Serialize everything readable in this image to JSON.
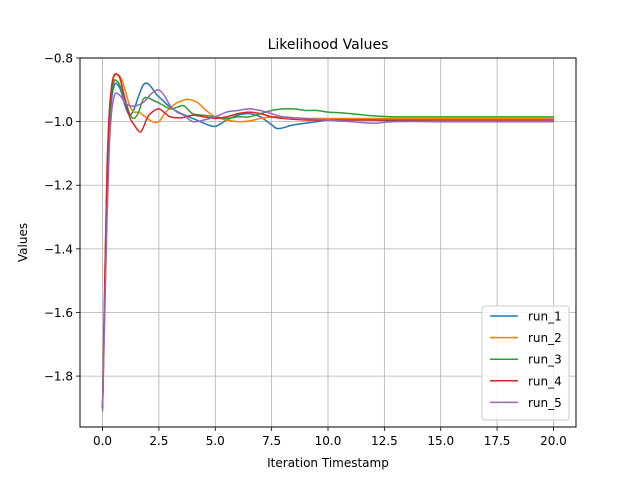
{
  "chart_data": {
    "type": "line",
    "title": "Likelihood Values",
    "xlabel": "Iteration Timestamp",
    "ylabel": "Values",
    "xlim": [
      -1.0,
      21.0
    ],
    "ylim": [
      -1.96,
      -0.8
    ],
    "xticks": [
      0.0,
      2.5,
      5.0,
      7.5,
      10.0,
      12.5,
      15.0,
      17.5,
      20.0
    ],
    "xtick_labels": [
      "0.0",
      "2.5",
      "5.0",
      "7.5",
      "10.0",
      "12.5",
      "15.0",
      "17.5",
      "20.0"
    ],
    "yticks": [
      -1.8,
      -1.6,
      -1.4,
      -1.2,
      -1.0,
      -0.8
    ],
    "ytick_labels": [
      "−1.8",
      "−1.6",
      "−1.4",
      "−1.2",
      "−1.0",
      "−0.8"
    ],
    "grid": true,
    "legend_position": "lower-right",
    "series": [
      {
        "name": "run_1",
        "color": "#1f77b4",
        "x": [
          0,
          0.1,
          0.2,
          0.3,
          0.4,
          0.5,
          0.6,
          0.8,
          1.0,
          1.2,
          1.4,
          1.6,
          1.8,
          2.0,
          2.2,
          2.4,
          2.7,
          3.0,
          3.5,
          4.0,
          4.5,
          5.0,
          5.5,
          6.0,
          6.5,
          7.0,
          7.5,
          7.8,
          8.5,
          9.5,
          10.0,
          11.0,
          12.0,
          13.0,
          15.0,
          17.5,
          20.0
        ],
        "y": [
          -1.9,
          -1.55,
          -1.22,
          -1.02,
          -0.93,
          -0.89,
          -0.88,
          -0.9,
          -0.95,
          -0.98,
          -0.96,
          -0.92,
          -0.885,
          -0.88,
          -0.895,
          -0.915,
          -0.935,
          -0.955,
          -0.975,
          -0.99,
          -1.005,
          -1.015,
          -0.995,
          -0.98,
          -0.975,
          -0.985,
          -1.01,
          -1.022,
          -1.01,
          -1.0,
          -0.995,
          -0.995,
          -0.995,
          -0.998,
          -1.0,
          -1.0,
          -1.0
        ]
      },
      {
        "name": "run_2",
        "color": "#ff7f0e",
        "x": [
          0,
          0.1,
          0.2,
          0.3,
          0.4,
          0.5,
          0.6,
          0.8,
          1.0,
          1.2,
          1.4,
          1.6,
          1.8,
          2.0,
          2.2,
          2.5,
          2.8,
          3.2,
          3.5,
          3.8,
          4.2,
          4.6,
          5.0,
          5.5,
          6.0,
          6.5,
          7.0,
          7.5,
          8.0,
          9.0,
          10.0,
          11.0,
          12.0,
          13.0,
          15.0,
          17.5,
          20.0
        ],
        "y": [
          -1.9,
          -1.5,
          -1.15,
          -0.98,
          -0.9,
          -0.86,
          -0.852,
          -0.86,
          -0.9,
          -0.95,
          -0.97,
          -0.97,
          -0.98,
          -0.99,
          -1.0,
          -1.0,
          -0.97,
          -0.945,
          -0.935,
          -0.93,
          -0.94,
          -0.965,
          -0.985,
          -0.995,
          -1.0,
          -0.998,
          -0.99,
          -0.985,
          -0.985,
          -0.99,
          -0.99,
          -0.99,
          -0.99,
          -0.99,
          -0.99,
          -0.99,
          -0.99
        ]
      },
      {
        "name": "run_3",
        "color": "#2ca02c",
        "x": [
          0,
          0.1,
          0.2,
          0.3,
          0.4,
          0.5,
          0.6,
          0.8,
          1.0,
          1.2,
          1.4,
          1.6,
          1.8,
          2.0,
          2.3,
          2.6,
          3.0,
          3.3,
          3.6,
          4.0,
          4.5,
          5.0,
          5.5,
          6.0,
          6.5,
          7.0,
          7.5,
          8.0,
          8.5,
          9.0,
          9.5,
          10.0,
          10.5,
          11.0,
          12.0,
          13.0,
          15.0,
          17.5,
          20.0
        ],
        "y": [
          -1.9,
          -1.55,
          -1.2,
          -1.0,
          -0.91,
          -0.875,
          -0.87,
          -0.89,
          -0.93,
          -0.975,
          -0.99,
          -0.97,
          -0.93,
          -0.925,
          -0.935,
          -0.945,
          -0.96,
          -0.955,
          -0.95,
          -0.975,
          -0.98,
          -0.985,
          -0.99,
          -0.985,
          -0.985,
          -0.975,
          -0.965,
          -0.96,
          -0.96,
          -0.965,
          -0.965,
          -0.97,
          -0.972,
          -0.975,
          -0.982,
          -0.985,
          -0.985,
          -0.985,
          -0.985
        ]
      },
      {
        "name": "run_4",
        "color": "#d62728",
        "x": [
          0,
          0.1,
          0.2,
          0.3,
          0.4,
          0.5,
          0.6,
          0.7,
          0.8,
          1.0,
          1.2,
          1.4,
          1.6,
          1.7,
          1.8,
          2.0,
          2.2,
          2.5,
          2.8,
          3.0,
          3.5,
          4.0,
          4.5,
          5.0,
          5.5,
          6.0,
          6.5,
          7.0,
          7.5,
          8.0,
          9.0,
          10.0,
          11.0,
          12.0,
          13.0,
          15.0,
          17.5,
          20.0
        ],
        "y": [
          -1.9,
          -1.5,
          -1.15,
          -0.97,
          -0.89,
          -0.855,
          -0.85,
          -0.855,
          -0.87,
          -0.93,
          -0.985,
          -1.01,
          -1.03,
          -1.032,
          -1.02,
          -0.985,
          -0.97,
          -0.96,
          -0.975,
          -0.985,
          -0.988,
          -0.98,
          -0.985,
          -0.99,
          -0.985,
          -0.975,
          -0.97,
          -0.975,
          -0.985,
          -0.99,
          -0.995,
          -0.995,
          -0.995,
          -0.995,
          -0.995,
          -0.995,
          -0.995,
          -0.995
        ]
      },
      {
        "name": "run_5",
        "color": "#9467bd",
        "x": [
          0,
          0.1,
          0.2,
          0.3,
          0.4,
          0.5,
          0.6,
          0.8,
          1.0,
          1.2,
          1.5,
          1.8,
          2.0,
          2.2,
          2.5,
          2.8,
          3.0,
          3.3,
          3.6,
          4.0,
          4.5,
          5.0,
          5.5,
          6.0,
          6.5,
          7.0,
          7.5,
          8.0,
          9.0,
          10.0,
          11.0,
          12.0,
          13.0,
          15.0,
          17.5,
          20.0
        ],
        "y": [
          -1.91,
          -1.6,
          -1.3,
          -1.08,
          -0.97,
          -0.925,
          -0.91,
          -0.92,
          -0.94,
          -0.95,
          -0.95,
          -0.94,
          -0.925,
          -0.91,
          -0.9,
          -0.925,
          -0.95,
          -0.97,
          -0.98,
          -1.0,
          -0.995,
          -0.985,
          -0.97,
          -0.965,
          -0.96,
          -0.965,
          -0.975,
          -0.985,
          -0.99,
          -0.995,
          -1.0,
          -1.005,
          -1.0,
          -1.0,
          -1.0,
          -1.0
        ]
      }
    ]
  }
}
